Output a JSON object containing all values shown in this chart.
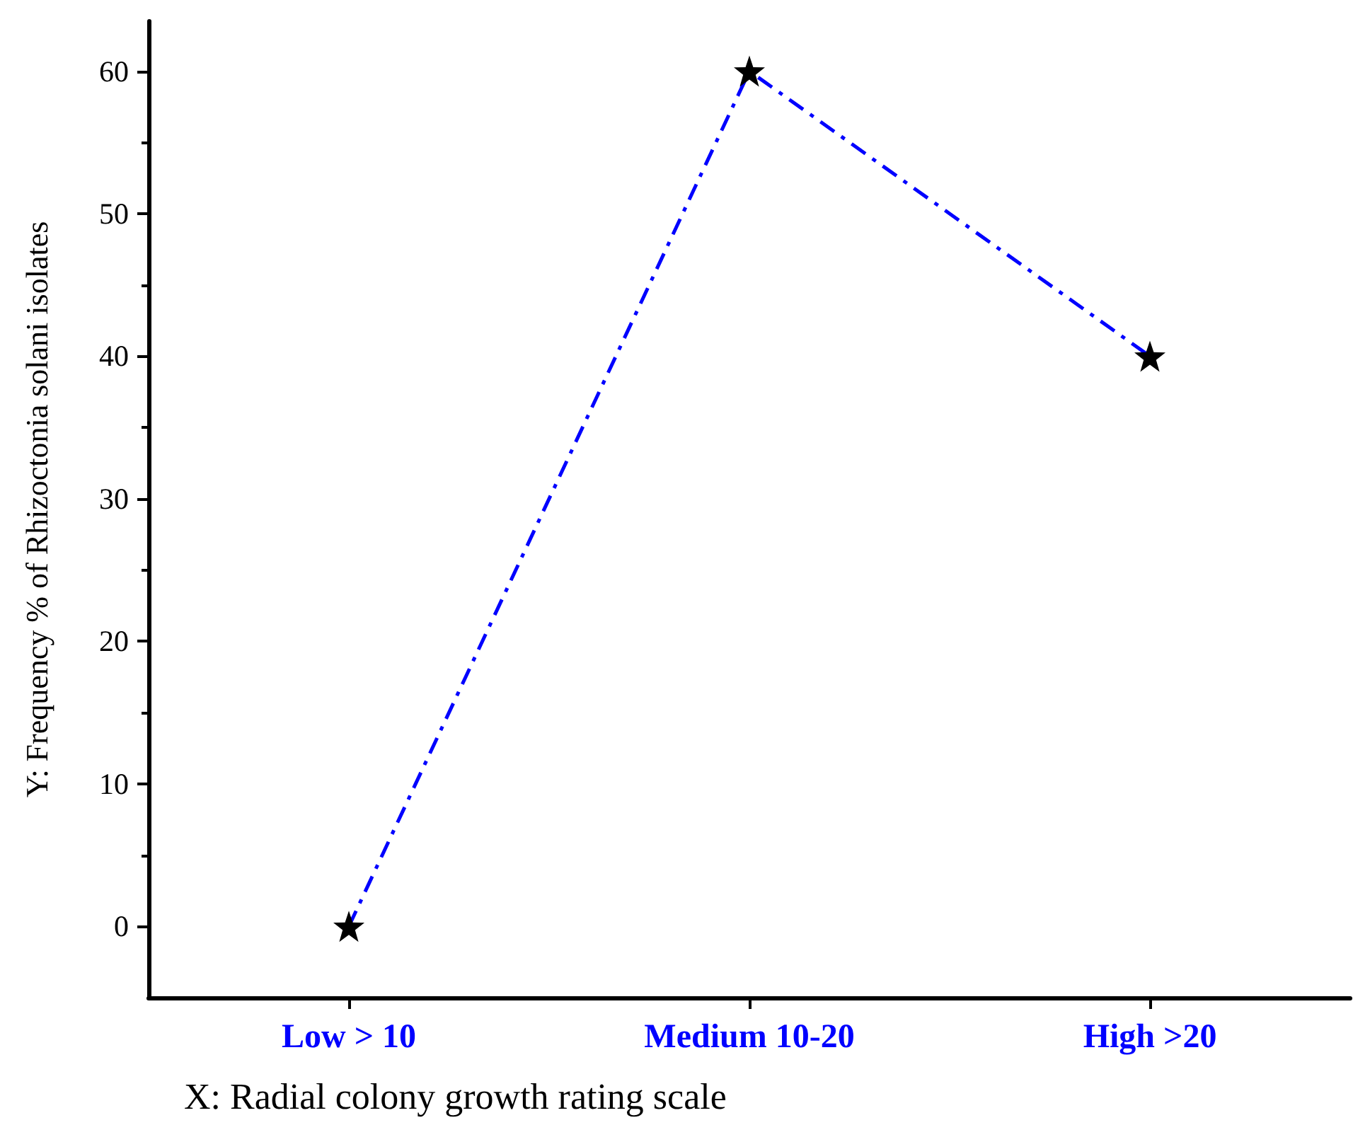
{
  "chart_data": {
    "type": "line",
    "xlabel": "X: Radial colony growth rating scale",
    "ylabel": "Y: Frequency % of Rhizoctonia solani isolates",
    "categories": [
      "Low > 10",
      "Medium 10-20",
      "High >20"
    ],
    "series": [
      {
        "color": "#0000ff",
        "values": [
          0,
          60,
          40
        ]
      }
    ],
    "ylim": [
      -5,
      63.5
    ],
    "yticks": [
      0,
      10,
      20,
      30,
      40,
      50,
      60
    ],
    "grid": false,
    "marker": "star",
    "line_style": "dashed"
  }
}
